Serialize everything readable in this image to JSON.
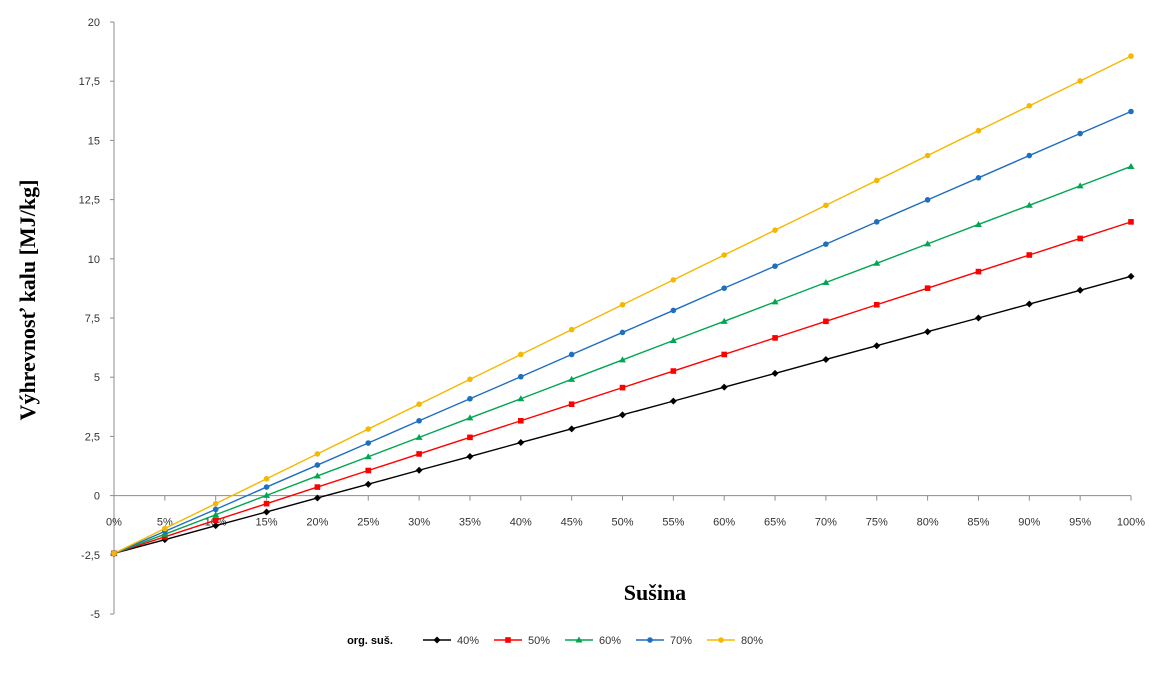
{
  "chart_data": {
    "type": "line",
    "ylabel": "Výhrevnosť kalu [MJ/kg]",
    "xlabel": "Sušina",
    "ylim": [
      -5,
      20
    ],
    "yticks": [
      "-5",
      "-2,5",
      "0",
      "2,5",
      "5",
      "7,5",
      "10",
      "12,5",
      "15",
      "17,5",
      "20"
    ],
    "ytick_values": [
      -5,
      -2.5,
      0,
      2.5,
      5,
      7.5,
      10,
      12.5,
      15,
      17.5,
      20
    ],
    "categories": [
      "0%",
      "5%",
      "10%",
      "15%",
      "20%",
      "25%",
      "30%",
      "35%",
      "40%",
      "45%",
      "50%",
      "55%",
      "60%",
      "65%",
      "70%",
      "75%",
      "80%",
      "85%",
      "90%",
      "95%",
      "100%"
    ],
    "x": [
      0,
      5,
      10,
      15,
      20,
      25,
      30,
      35,
      40,
      45,
      50,
      55,
      60,
      65,
      70,
      75,
      80,
      85,
      90,
      95,
      100
    ],
    "grid": false,
    "legend": {
      "title": "org. suš.",
      "placement": "bottom"
    },
    "series": [
      {
        "name": "40%",
        "color": "#000000",
        "marker": "diamond",
        "values": [
          -2.44,
          -1.86,
          -1.27,
          -0.69,
          -0.1,
          0.48,
          1.07,
          1.65,
          2.24,
          2.82,
          3.41,
          3.99,
          4.58,
          5.16,
          5.75,
          6.33,
          6.92,
          7.5,
          8.09,
          8.67,
          9.26
        ]
      },
      {
        "name": "50%",
        "color": "#ff0000",
        "marker": "square",
        "values": [
          -2.44,
          -1.74,
          -1.04,
          -0.34,
          0.36,
          1.06,
          1.76,
          2.46,
          3.16,
          3.86,
          4.56,
          5.26,
          5.96,
          6.66,
          7.36,
          8.06,
          8.76,
          9.46,
          10.16,
          10.86,
          11.56
        ]
      },
      {
        "name": "60%",
        "color": "#00a651",
        "marker": "triangle",
        "values": [
          -2.44,
          -1.63,
          -0.81,
          0.01,
          0.83,
          1.64,
          2.46,
          3.28,
          4.09,
          4.91,
          5.73,
          6.55,
          7.36,
          8.18,
          9.0,
          9.81,
          10.63,
          11.45,
          12.26,
          13.08,
          13.9
        ]
      },
      {
        "name": "70%",
        "color": "#1f6fbf",
        "marker": "circle",
        "values": [
          -2.44,
          -1.51,
          -0.58,
          0.36,
          1.29,
          2.22,
          3.16,
          4.09,
          5.02,
          5.96,
          6.89,
          7.82,
          8.76,
          9.69,
          10.62,
          11.56,
          12.49,
          13.42,
          14.36,
          15.29,
          16.22
        ]
      },
      {
        "name": "80%",
        "color": "#f5b800",
        "marker": "circle",
        "values": [
          -2.44,
          -1.39,
          -0.34,
          0.71,
          1.76,
          2.81,
          3.86,
          4.91,
          5.96,
          7.01,
          8.06,
          9.11,
          10.16,
          11.21,
          12.26,
          13.31,
          14.36,
          15.41,
          16.46,
          17.51,
          18.56
        ]
      }
    ]
  }
}
